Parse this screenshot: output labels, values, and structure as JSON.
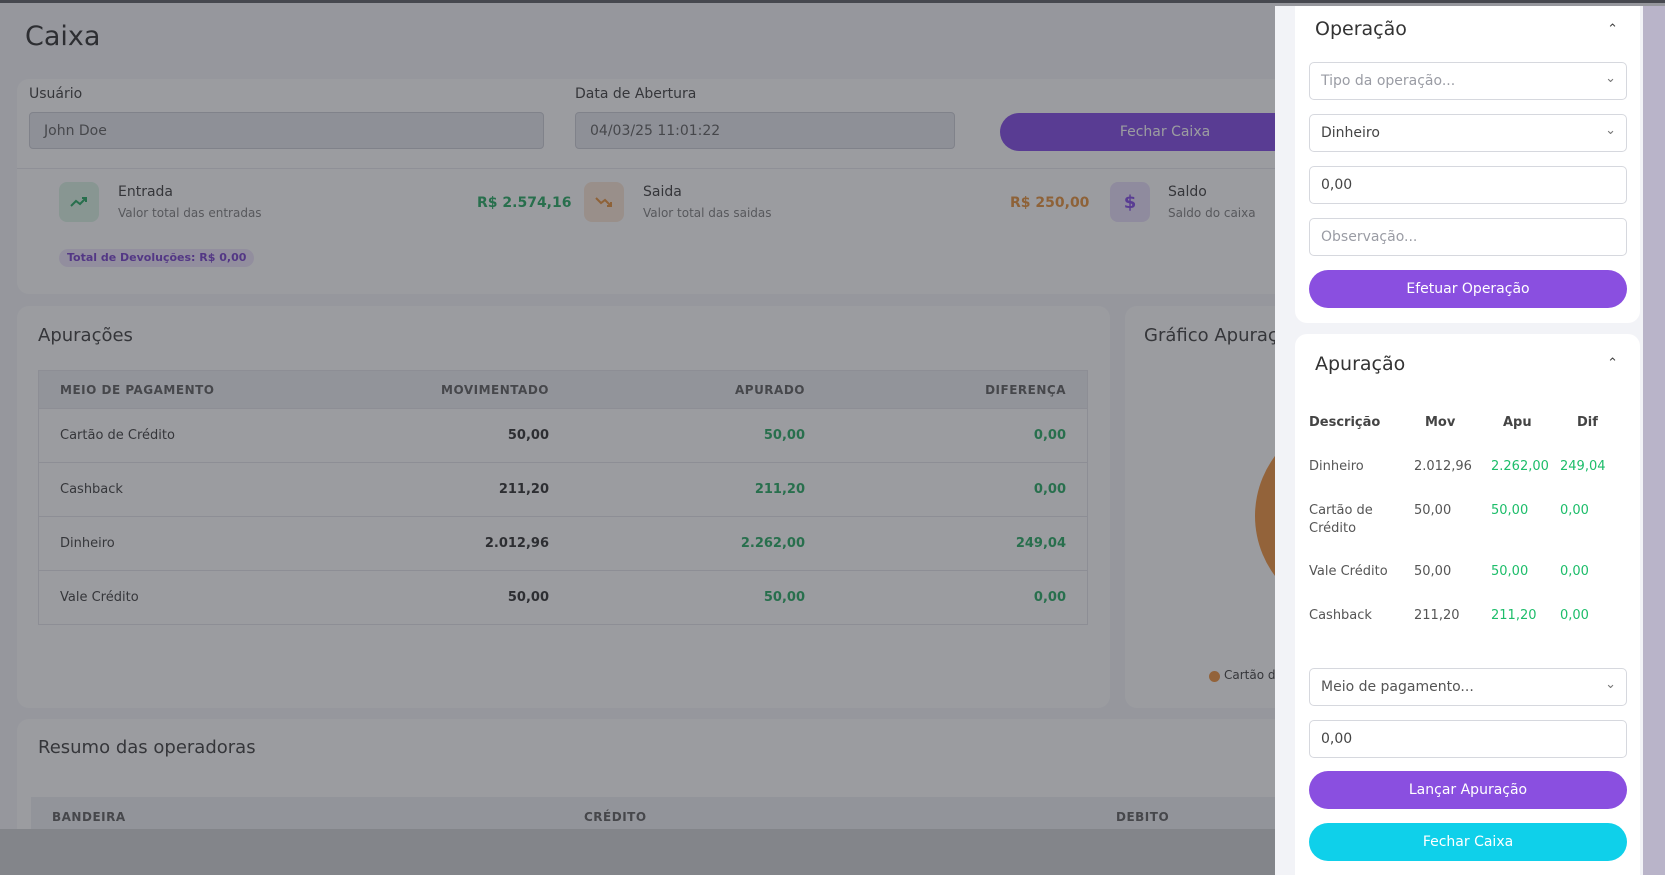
{
  "page": {
    "title": "Caixa"
  },
  "header": {
    "usuario_label": "Usuário",
    "usuario_value": "John Doe",
    "data_label": "Data de Abertura",
    "data_value": "04/03/25 11:01:22",
    "fechar_caixa_label": "Fechar Caixa"
  },
  "stats": {
    "entrada": {
      "title": "Entrada",
      "subtitle": "Valor total das entradas",
      "value": "R$ 2.574,16",
      "color": "#18a558",
      "icon": "trending-up-icon"
    },
    "saida": {
      "title": "Saida",
      "subtitle": "Valor total das saidas",
      "value": "R$ 250,00",
      "color": "#e58a2e",
      "icon": "trending-down-icon"
    },
    "saldo": {
      "title": "Saldo",
      "subtitle": "Saldo do caixa",
      "icon": "dollar-icon"
    },
    "devolucoes_badge": "Total de Devoluções: R$ 0,00"
  },
  "apuracoes": {
    "title": "Apurações",
    "columns": [
      "MEIO DE PAGAMENTO",
      "MOVIMENTADO",
      "APURADO",
      "DIFERENÇA"
    ],
    "rows": [
      {
        "meio": "Cartão de Crédito",
        "movimentado": "50,00",
        "apurado": "50,00",
        "diferenca": "0,00"
      },
      {
        "meio": "Cashback",
        "movimentado": "211,20",
        "apurado": "211,20",
        "diferenca": "0,00"
      },
      {
        "meio": "Dinheiro",
        "movimentado": "2.012,96",
        "apurado": "2.262,00",
        "diferenca": "249,04"
      },
      {
        "meio": "Vale Crédito",
        "movimentado": "50,00",
        "apurado": "50,00",
        "diferenca": "0,00"
      }
    ]
  },
  "grafico": {
    "title": "Gráfico Apuraç",
    "legend_label": "Cartão de"
  },
  "resumo": {
    "title": "Resumo das operadoras",
    "columns": [
      "BANDEIRA",
      "CRÉDITO",
      "DEBITO"
    ]
  },
  "panel": {
    "operacao": {
      "title": "Operação",
      "tipo_placeholder": "Tipo da operação...",
      "forma_value": "Dinheiro",
      "valor_value": "0,00",
      "observacao_placeholder": "Observação...",
      "submit_label": "Efetuar Operação"
    },
    "apuracao": {
      "title": "Apuração",
      "columns": [
        "Descrição",
        "Mov",
        "Apu",
        "Dif"
      ],
      "rows": [
        {
          "descricao": "Dinheiro",
          "mov": "2.012,96",
          "apu": "2.262,00",
          "dif": "249,04"
        },
        {
          "descricao": "Cartão de Crédito",
          "mov": "50,00",
          "apu": "50,00",
          "dif": "0,00"
        },
        {
          "descricao": "Vale Crédito",
          "mov": "50,00",
          "apu": "50,00",
          "dif": "0,00"
        },
        {
          "descricao": "Cashback",
          "mov": "211,20",
          "apu": "211,20",
          "dif": "0,00"
        }
      ],
      "meio_placeholder": "Meio de pagamento...",
      "valor_value": "0,00",
      "lancar_label": "Lançar Apuração",
      "fechar_label": "Fechar Caixa"
    }
  },
  "colors": {
    "accent_purple": "#8a4fe0",
    "accent_cyan": "#0fd0ea",
    "positive_green": "#18a558",
    "warning_orange": "#e58a2e"
  }
}
